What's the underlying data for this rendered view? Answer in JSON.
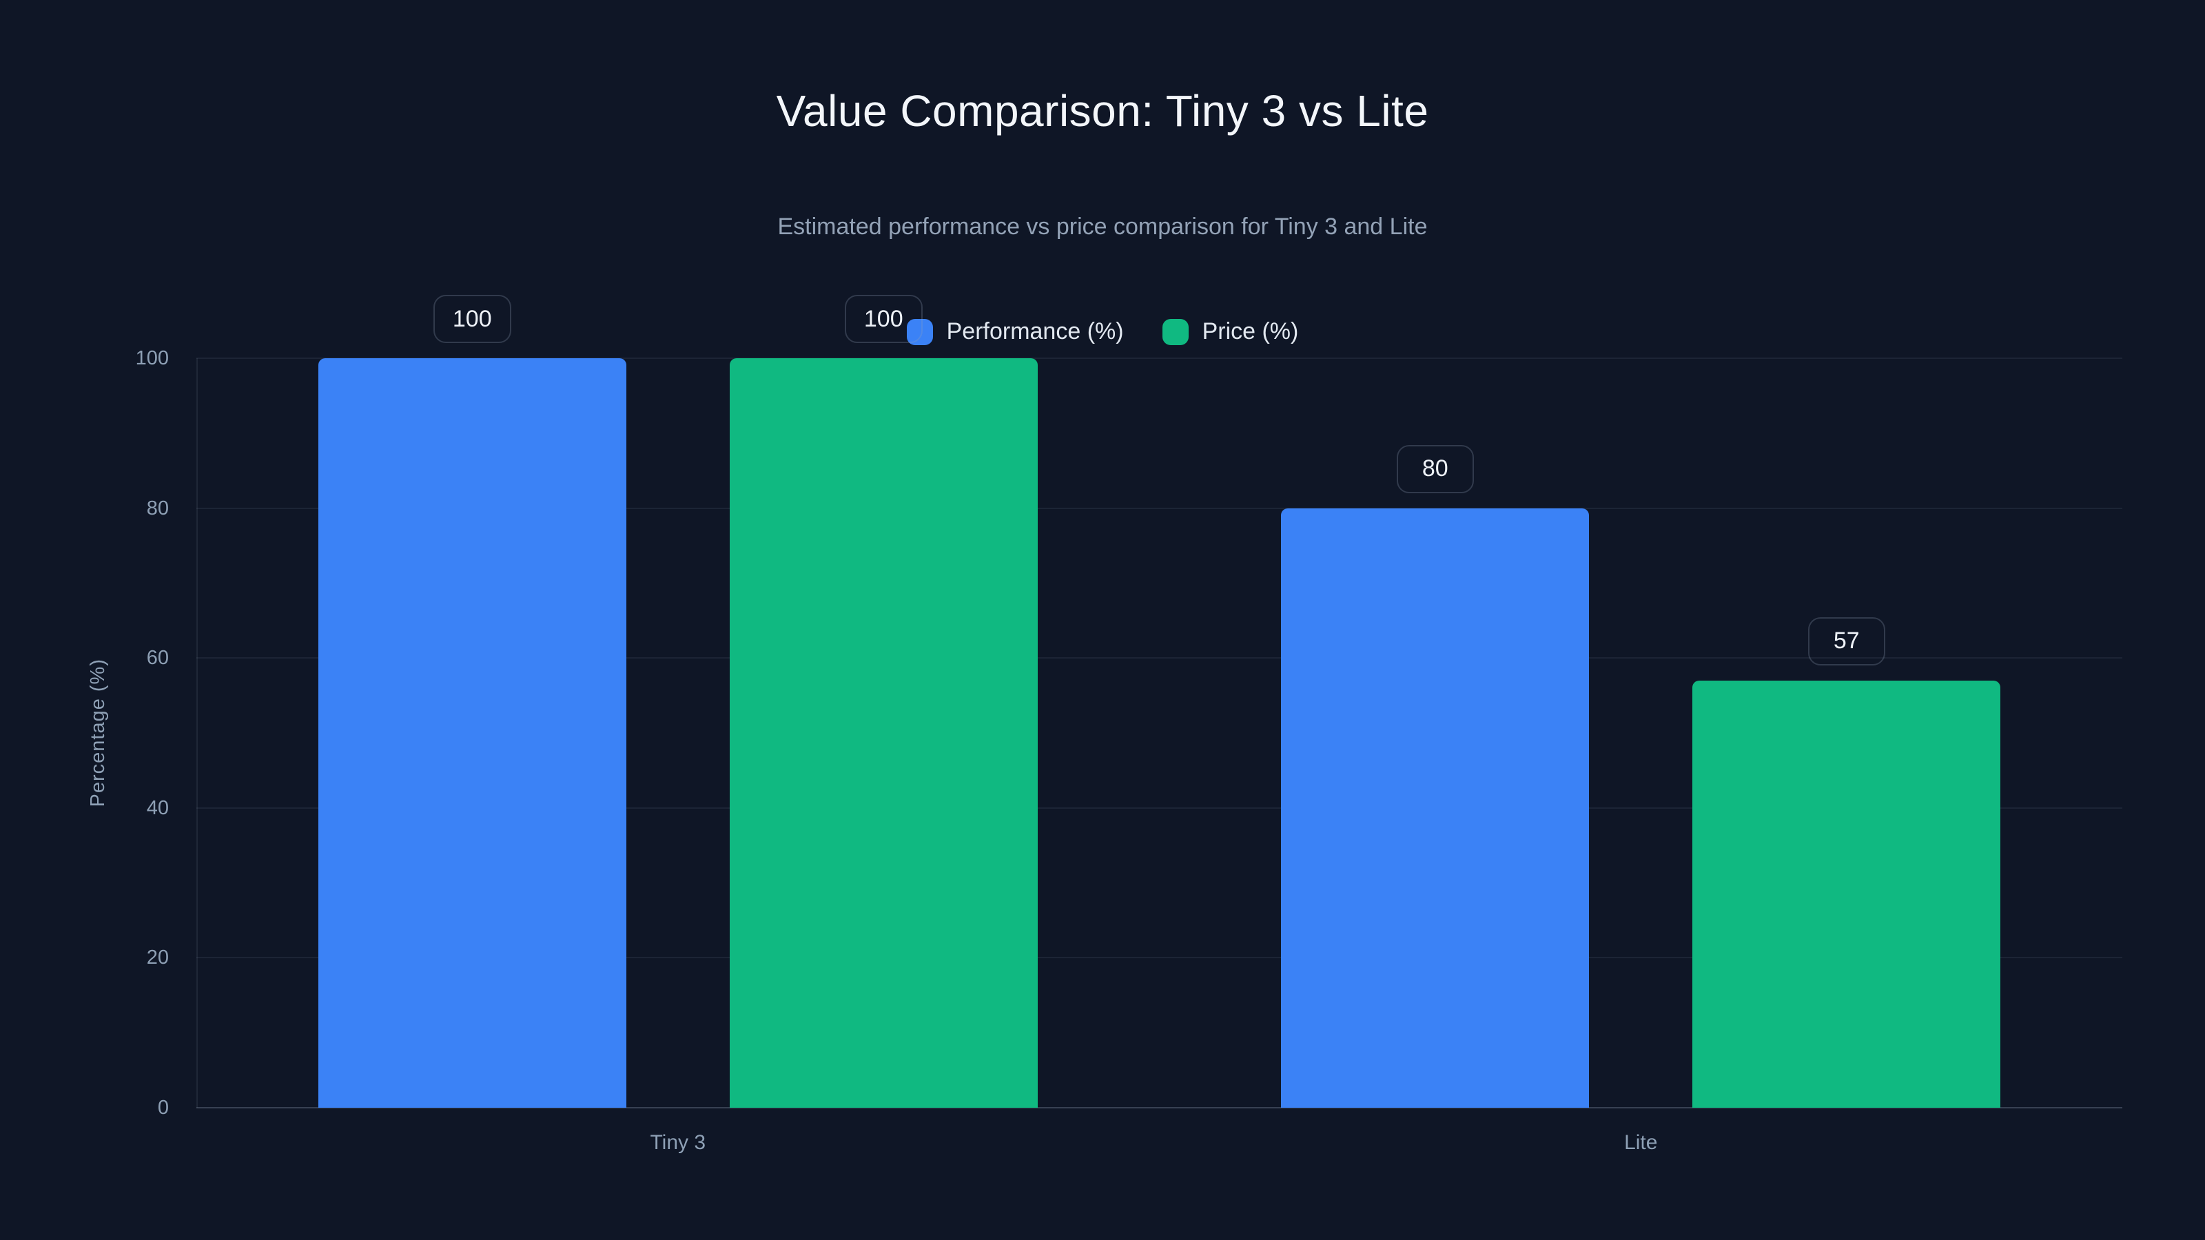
{
  "page": {
    "background": "#0f1626",
    "title": "Value Comparison: Tiny 3 vs Lite",
    "subtitle": "Estimated performance vs price comparison for Tiny 3 and Lite"
  },
  "colors": {
    "performance": "#3b82f6",
    "price": "#10b981",
    "grid": "rgba(148,163,184,0.10)",
    "axis": "rgba(148,163,184,0.30)",
    "muted_text": "#8ea0b5"
  },
  "chart_data": {
    "type": "bar",
    "title": "Value Comparison: Tiny 3 vs Lite",
    "subtitle": "Estimated performance vs price comparison for Tiny 3 and Lite",
    "categories": [
      "Tiny 3",
      "Lite"
    ],
    "series": [
      {
        "name": "Performance (%)",
        "color": "#3b82f6",
        "values": [
          100,
          80
        ]
      },
      {
        "name": "Price (%)",
        "color": "#10b981",
        "values": [
          100,
          57
        ]
      }
    ],
    "xlabel": "",
    "ylabel": "Percentage (%)",
    "ylim": [
      0,
      100
    ],
    "yticks": [
      0,
      20,
      40,
      60,
      80,
      100
    ],
    "grid": true,
    "legend_position": "top-center",
    "value_labels_shown": true,
    "value_labels": [
      100,
      100,
      80,
      57
    ]
  }
}
